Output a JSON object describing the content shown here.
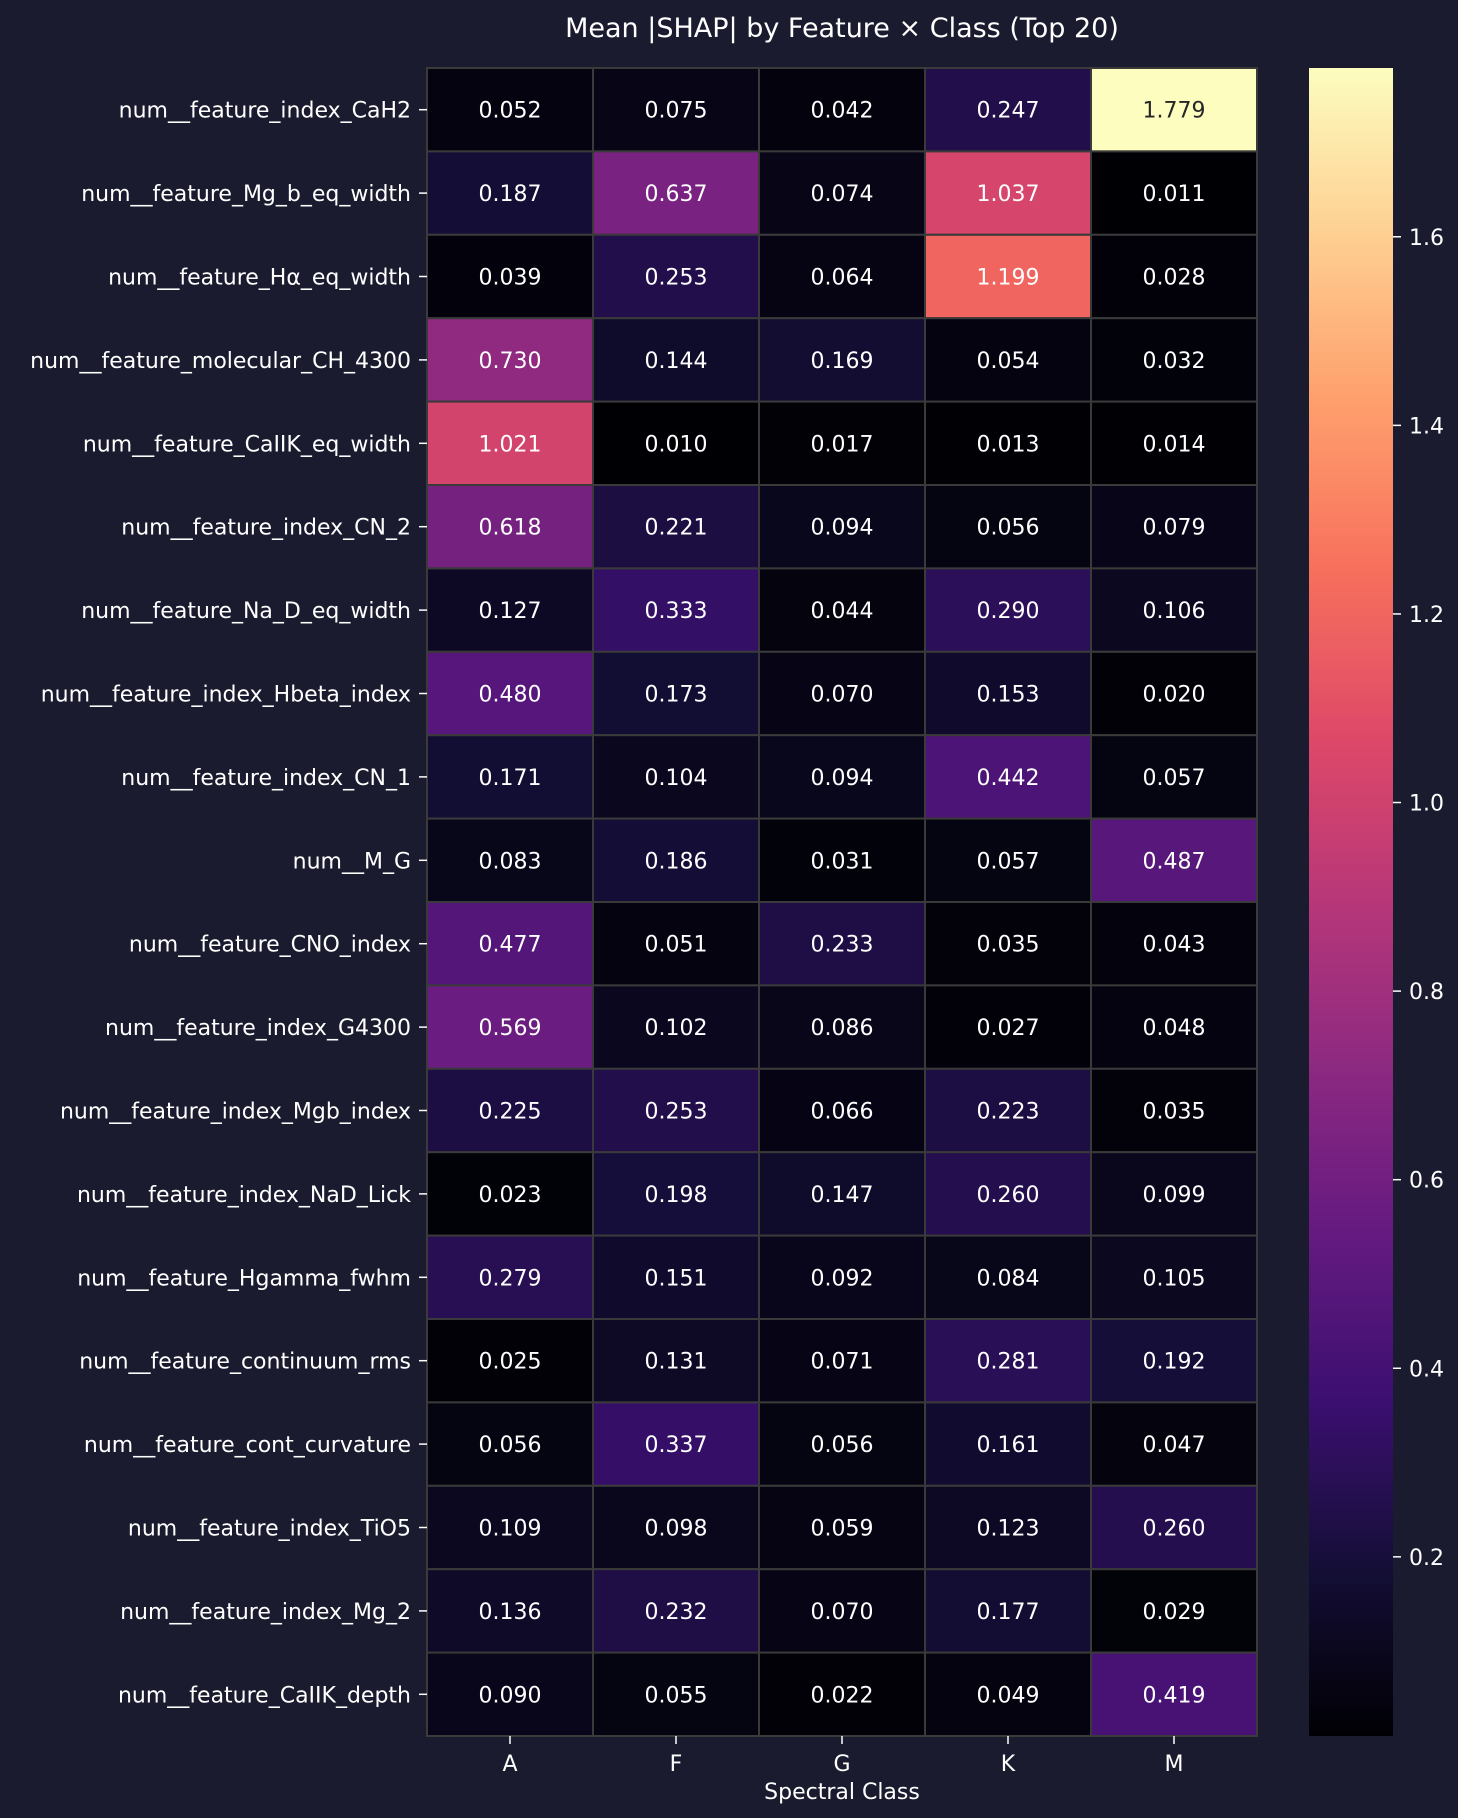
{
  "chart_data": {
    "type": "heatmap",
    "title": "Mean |SHAP| by Feature × Class (Top 20)",
    "xlabel": "Spectral Class",
    "ylabel": "",
    "columns": [
      "A",
      "F",
      "G",
      "K",
      "M"
    ],
    "rows": [
      "num__feature_index_CaH2",
      "num__feature_Mg_b_eq_width",
      "num__feature_Hα_eq_width",
      "num__feature_molecular_CH_4300",
      "num__feature_CaIIK_eq_width",
      "num__feature_index_CN_2",
      "num__feature_Na_D_eq_width",
      "num__feature_index_Hbeta_index",
      "num__feature_index_CN_1",
      "num__M_G",
      "num__feature_CNO_index",
      "num__feature_index_G4300",
      "num__feature_index_Mgb_index",
      "num__feature_index_NaD_Lick",
      "num__feature_Hgamma_fwhm",
      "num__feature_continuum_rms",
      "num__feature_cont_curvature",
      "num__feature_index_TiO5",
      "num__feature_index_Mg_2",
      "num__feature_CaIIK_depth"
    ],
    "values": [
      [
        0.052,
        0.075,
        0.042,
        0.247,
        1.779
      ],
      [
        0.187,
        0.637,
        0.074,
        1.037,
        0.011
      ],
      [
        0.039,
        0.253,
        0.064,
        1.199,
        0.028
      ],
      [
        0.73,
        0.144,
        0.169,
        0.054,
        0.032
      ],
      [
        1.021,
        0.01,
        0.017,
        0.013,
        0.014
      ],
      [
        0.618,
        0.221,
        0.094,
        0.056,
        0.079
      ],
      [
        0.127,
        0.333,
        0.044,
        0.29,
        0.106
      ],
      [
        0.48,
        0.173,
        0.07,
        0.153,
        0.02
      ],
      [
        0.171,
        0.104,
        0.094,
        0.442,
        0.057
      ],
      [
        0.083,
        0.186,
        0.031,
        0.057,
        0.487
      ],
      [
        0.477,
        0.051,
        0.233,
        0.035,
        0.043
      ],
      [
        0.569,
        0.102,
        0.086,
        0.027,
        0.048
      ],
      [
        0.225,
        0.253,
        0.066,
        0.223,
        0.035
      ],
      [
        0.023,
        0.198,
        0.147,
        0.26,
        0.099
      ],
      [
        0.279,
        0.151,
        0.092,
        0.084,
        0.105
      ],
      [
        0.025,
        0.131,
        0.071,
        0.281,
        0.192
      ],
      [
        0.056,
        0.337,
        0.056,
        0.161,
        0.047
      ],
      [
        0.109,
        0.098,
        0.059,
        0.123,
        0.26
      ],
      [
        0.136,
        0.232,
        0.07,
        0.177,
        0.029
      ],
      [
        0.09,
        0.055,
        0.022,
        0.049,
        0.419
      ]
    ],
    "colormap": "magma",
    "color_range": [
      0.01,
      1.779
    ],
    "colorbar_ticks": [
      0.2,
      0.4,
      0.6,
      0.8,
      1.0,
      1.2,
      1.4,
      1.6
    ],
    "colorbar_tick_labels": [
      "0.2",
      "0.4",
      "0.6",
      "0.8",
      "1.0",
      "1.2",
      "1.4",
      "1.6"
    ],
    "background_color": "#1a1b2e",
    "cell_border_color": "#3a3a3a"
  }
}
